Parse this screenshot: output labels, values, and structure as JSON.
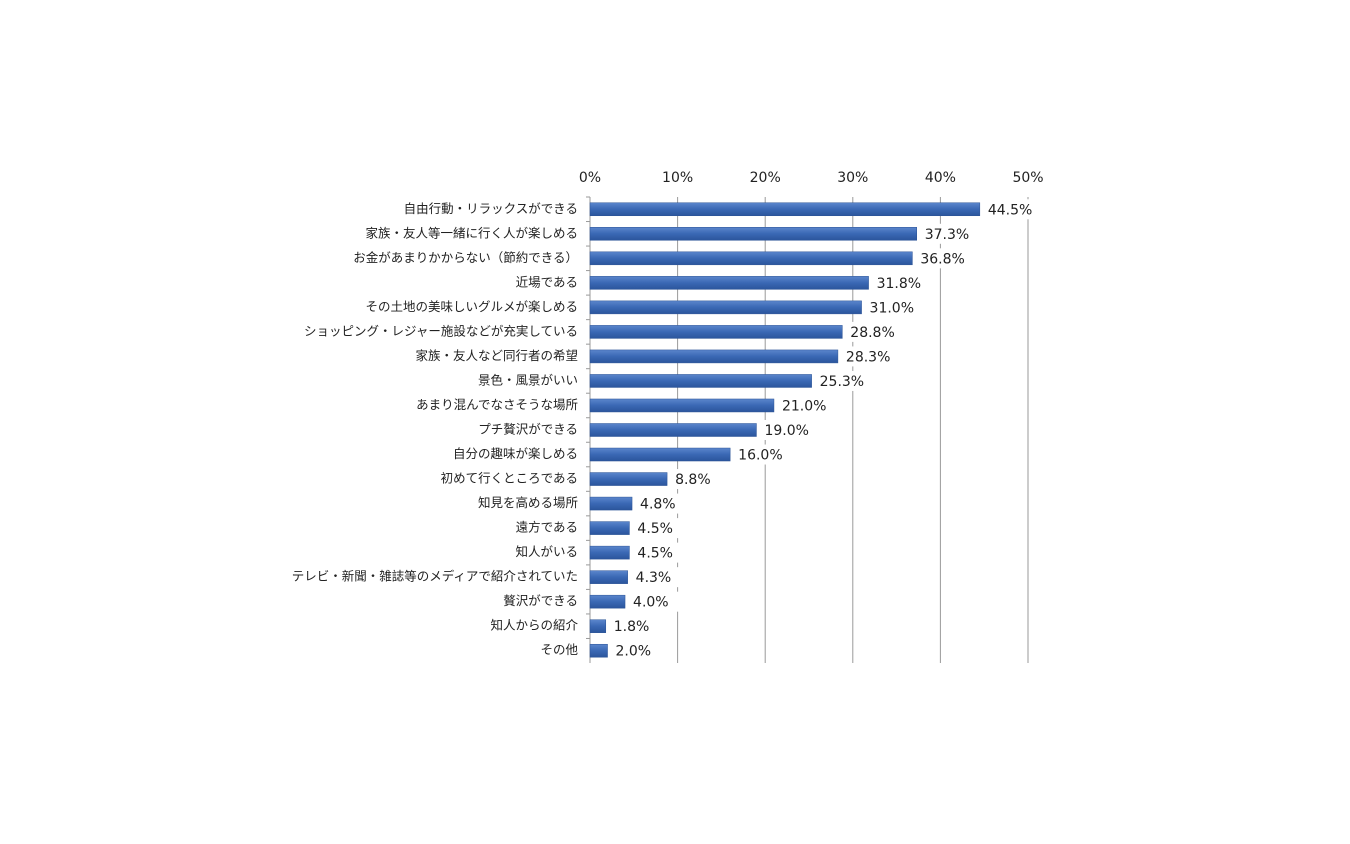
{
  "chart_data": {
    "type": "bar",
    "orientation": "horizontal",
    "categories": [
      "自由行動・リラックスができる",
      "家族・友人等一緒に行く人が楽しめる",
      "お金があまりかからない（節約できる）",
      "近場である",
      "その土地の美味しいグルメが楽しめる",
      "ショッピング・レジャー施設などが充実している",
      "家族・友人など同行者の希望",
      "景色・風景がいい",
      "あまり混んでなさそうな場所",
      "プチ贅沢ができる",
      "自分の趣味が楽しめる",
      "初めて行くところである",
      "知見を高める場所",
      "遠方である",
      "知人がいる",
      "テレビ・新聞・雑誌等のメディアで紹介されていた",
      "贅沢ができる",
      "知人からの紹介",
      "その他"
    ],
    "values": [
      44.5,
      37.3,
      36.8,
      31.8,
      31.0,
      28.8,
      28.3,
      25.3,
      21.0,
      19.0,
      16.0,
      8.8,
      4.8,
      4.5,
      4.5,
      4.3,
      4.0,
      1.8,
      2.0
    ],
    "value_labels": [
      "44.5%",
      "37.3%",
      "36.8%",
      "31.8%",
      "31.0%",
      "28.8%",
      "28.3%",
      "25.3%",
      "21.0%",
      "19.0%",
      "16.0%",
      "8.8%",
      "4.8%",
      "4.5%",
      "4.5%",
      "4.3%",
      "4.0%",
      "1.8%",
      "2.0%"
    ],
    "color": "#3a68b4",
    "xlim": [
      0,
      50
    ],
    "xticks": [
      {
        "value": 0,
        "label": "0%"
      },
      {
        "value": 10,
        "label": "10%"
      },
      {
        "value": 20,
        "label": "20%"
      },
      {
        "value": 30,
        "label": "30%"
      },
      {
        "value": 40,
        "label": "40%"
      },
      {
        "value": 50,
        "label": "50%"
      }
    ],
    "grid": true
  }
}
